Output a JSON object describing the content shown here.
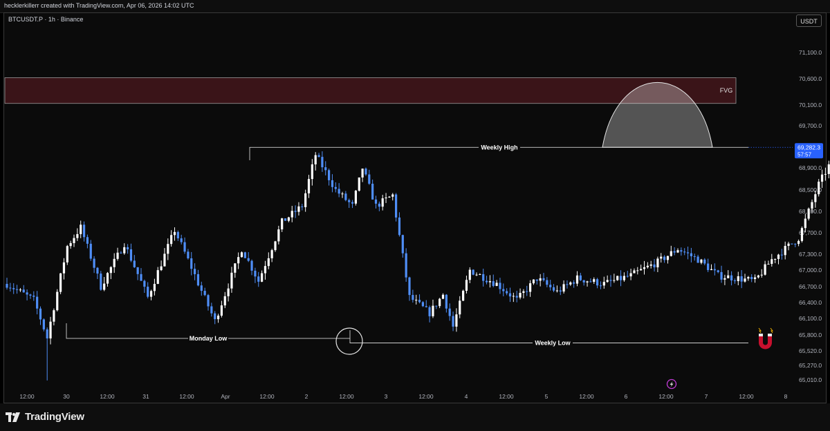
{
  "header": {
    "attribution": "hecklerkillerr created with TradingView.com, Apr 06, 2026 14:02 UTC"
  },
  "symbol_line": "BTCUSDT.P · 1h · Binance",
  "currency_button": "USDT",
  "branding": {
    "logo_text": "TradingView"
  },
  "colors": {
    "bull": "#ffffff",
    "bear": "#4f8ef7",
    "fvg_fill": "#3a1418",
    "background": "#0b0b0b",
    "price_tag": "#2962ff",
    "magnet": "#c8102e"
  },
  "chart_data": {
    "type": "candlestick",
    "timeframe": "1h",
    "y_axis": {
      "ticks": [
        "71,100.0",
        "70,600.0",
        "70,100.0",
        "69,700.0",
        "68,900.0",
        "68,500.0",
        "68,100.0",
        "67,700.0",
        "67,300.0",
        "67,000.0",
        "66,700.0",
        "66,400.0",
        "66,100.0",
        "65,800.0",
        "65,520.0",
        "65,270.0",
        "65,010.0"
      ],
      "range": [
        64900,
        71600
      ]
    },
    "x_axis": {
      "ticks": [
        "12:00",
        "30",
        "12:00",
        "31",
        "12:00",
        "Apr",
        "12:00",
        "2",
        "12:00",
        "3",
        "12:00",
        "4",
        "12:00",
        "5",
        "12:00",
        "6",
        "12:00",
        "7",
        "12:00",
        "8"
      ]
    },
    "current_price": {
      "value": "69,282.3",
      "countdown": "57:57"
    },
    "annotations": {
      "fvg": {
        "label": "FVG",
        "low": 70130,
        "high": 70620
      },
      "weekly_high": {
        "label": "Weekly High",
        "price": 69290
      },
      "monday_low": {
        "label": "Monday Low",
        "price": 65740
      },
      "weekly_low": {
        "label": "Weekly Low",
        "price": 65660
      }
    },
    "pivots": [
      [
        0,
        66750
      ],
      [
        8,
        66450
      ],
      [
        12,
        65750
      ],
      [
        18,
        67450
      ],
      [
        22,
        67800
      ],
      [
        28,
        66700
      ],
      [
        35,
        67500
      ],
      [
        42,
        66500
      ],
      [
        50,
        67750
      ],
      [
        55,
        67050
      ],
      [
        62,
        66050
      ],
      [
        70,
        67400
      ],
      [
        75,
        66800
      ],
      [
        82,
        67900
      ],
      [
        88,
        68200
      ],
      [
        92,
        69150
      ],
      [
        98,
        68500
      ],
      [
        103,
        68200
      ],
      [
        106,
        68900
      ],
      [
        110,
        68200
      ],
      [
        115,
        68400
      ],
      [
        120,
        66500
      ],
      [
        126,
        66200
      ],
      [
        130,
        66550
      ],
      [
        133,
        65950
      ],
      [
        138,
        67000
      ],
      [
        146,
        66750
      ],
      [
        152,
        66450
      ],
      [
        158,
        66850
      ],
      [
        164,
        66600
      ],
      [
        170,
        66850
      ],
      [
        178,
        66750
      ],
      [
        186,
        66900
      ],
      [
        194,
        67150
      ],
      [
        200,
        67400
      ],
      [
        206,
        67200
      ],
      [
        212,
        66900
      ],
      [
        218,
        66850
      ],
      [
        223,
        66800
      ],
      [
        228,
        67200
      ],
      [
        236,
        67600
      ],
      [
        242,
        68600
      ],
      [
        246,
        69050
      ],
      [
        252,
        68950
      ],
      [
        255,
        69500
      ],
      [
        257,
        69300
      ]
    ],
    "seed": 7
  }
}
